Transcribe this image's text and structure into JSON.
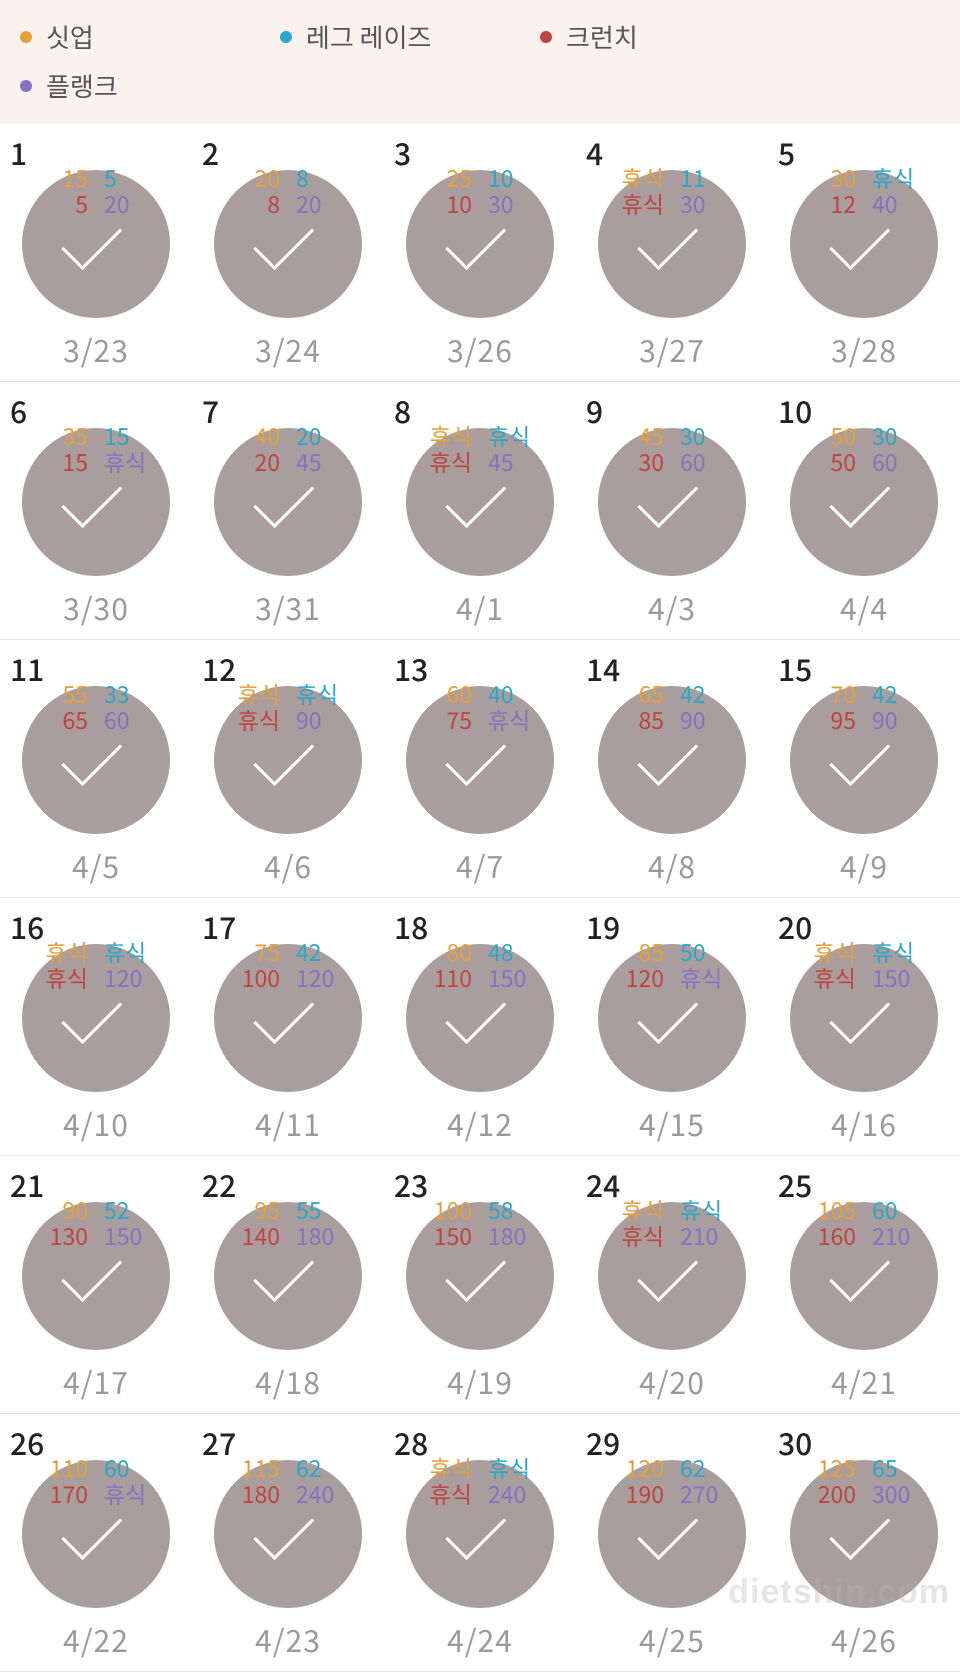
{
  "colors": {
    "situp": "#e6a03a",
    "legraise": "#2aa8c9",
    "crunch": "#c0443e",
    "plank": "#8b6fc2",
    "legend_bg": "#fbf1ed",
    "circle": "#a99d9d",
    "date_text": "#9a9a9a",
    "divider": "#e5e5e5"
  },
  "legend": [
    {
      "key": "situp",
      "label": "싯업",
      "color": "#e6a03a"
    },
    {
      "key": "legraise",
      "label": "레그 레이즈",
      "color": "#2aa8c9"
    },
    {
      "key": "crunch",
      "label": "크런치",
      "color": "#c0443e"
    },
    {
      "key": "plank",
      "label": "플랭크",
      "color": "#8b6fc2"
    }
  ],
  "rest_label": "휴식",
  "watermark": "dietshin.com",
  "days": [
    {
      "n": 1,
      "date": "3/23",
      "situp": "15",
      "legraise": "5",
      "crunch": "5",
      "plank": "20"
    },
    {
      "n": 2,
      "date": "3/24",
      "situp": "20",
      "legraise": "8",
      "crunch": "8",
      "plank": "20"
    },
    {
      "n": 3,
      "date": "3/26",
      "situp": "25",
      "legraise": "10",
      "crunch": "10",
      "plank": "30"
    },
    {
      "n": 4,
      "date": "3/27",
      "situp": "휴식",
      "legraise": "11",
      "crunch": "휴식",
      "plank": "30"
    },
    {
      "n": 5,
      "date": "3/28",
      "situp": "30",
      "legraise": "휴식",
      "crunch": "12",
      "plank": "40"
    },
    {
      "n": 6,
      "date": "3/30",
      "situp": "35",
      "legraise": "15",
      "crunch": "15",
      "plank": "휴식"
    },
    {
      "n": 7,
      "date": "3/31",
      "situp": "40",
      "legraise": "20",
      "crunch": "20",
      "plank": "45"
    },
    {
      "n": 8,
      "date": "4/1",
      "situp": "휴식",
      "legraise": "휴식",
      "crunch": "휴식",
      "plank": "45"
    },
    {
      "n": 9,
      "date": "4/3",
      "situp": "45",
      "legraise": "30",
      "crunch": "30",
      "plank": "60"
    },
    {
      "n": 10,
      "date": "4/4",
      "situp": "50",
      "legraise": "30",
      "crunch": "50",
      "plank": "60"
    },
    {
      "n": 11,
      "date": "4/5",
      "situp": "55",
      "legraise": "33",
      "crunch": "65",
      "plank": "60"
    },
    {
      "n": 12,
      "date": "4/6",
      "situp": "휴식",
      "legraise": "휴식",
      "crunch": "휴식",
      "plank": "90"
    },
    {
      "n": 13,
      "date": "4/7",
      "situp": "60",
      "legraise": "40",
      "crunch": "75",
      "plank": "휴식"
    },
    {
      "n": 14,
      "date": "4/8",
      "situp": "65",
      "legraise": "42",
      "crunch": "85",
      "plank": "90"
    },
    {
      "n": 15,
      "date": "4/9",
      "situp": "70",
      "legraise": "42",
      "crunch": "95",
      "plank": "90"
    },
    {
      "n": 16,
      "date": "4/10",
      "situp": "휴식",
      "legraise": "휴식",
      "crunch": "휴식",
      "plank": "120"
    },
    {
      "n": 17,
      "date": "4/11",
      "situp": "75",
      "legraise": "42",
      "crunch": "100",
      "plank": "120"
    },
    {
      "n": 18,
      "date": "4/12",
      "situp": "80",
      "legraise": "48",
      "crunch": "110",
      "plank": "150"
    },
    {
      "n": 19,
      "date": "4/15",
      "situp": "85",
      "legraise": "50",
      "crunch": "120",
      "plank": "휴식"
    },
    {
      "n": 20,
      "date": "4/16",
      "situp": "휴식",
      "legraise": "휴식",
      "crunch": "휴식",
      "plank": "150"
    },
    {
      "n": 21,
      "date": "4/17",
      "situp": "90",
      "legraise": "52",
      "crunch": "130",
      "plank": "150"
    },
    {
      "n": 22,
      "date": "4/18",
      "situp": "95",
      "legraise": "55",
      "crunch": "140",
      "plank": "180"
    },
    {
      "n": 23,
      "date": "4/19",
      "situp": "100",
      "legraise": "58",
      "crunch": "150",
      "plank": "180"
    },
    {
      "n": 24,
      "date": "4/20",
      "situp": "휴식",
      "legraise": "휴식",
      "crunch": "휴식",
      "plank": "210"
    },
    {
      "n": 25,
      "date": "4/21",
      "situp": "105",
      "legraise": "60",
      "crunch": "160",
      "plank": "210"
    },
    {
      "n": 26,
      "date": "4/22",
      "situp": "110",
      "legraise": "60",
      "crunch": "170",
      "plank": "휴식"
    },
    {
      "n": 27,
      "date": "4/23",
      "situp": "115",
      "legraise": "62",
      "crunch": "180",
      "plank": "240"
    },
    {
      "n": 28,
      "date": "4/24",
      "situp": "휴식",
      "legraise": "휴식",
      "crunch": "휴식",
      "plank": "240"
    },
    {
      "n": 29,
      "date": "4/25",
      "situp": "120",
      "legraise": "62",
      "crunch": "190",
      "plank": "270"
    },
    {
      "n": 30,
      "date": "4/26",
      "situp": "125",
      "legraise": "65",
      "crunch": "200",
      "plank": "300"
    }
  ]
}
